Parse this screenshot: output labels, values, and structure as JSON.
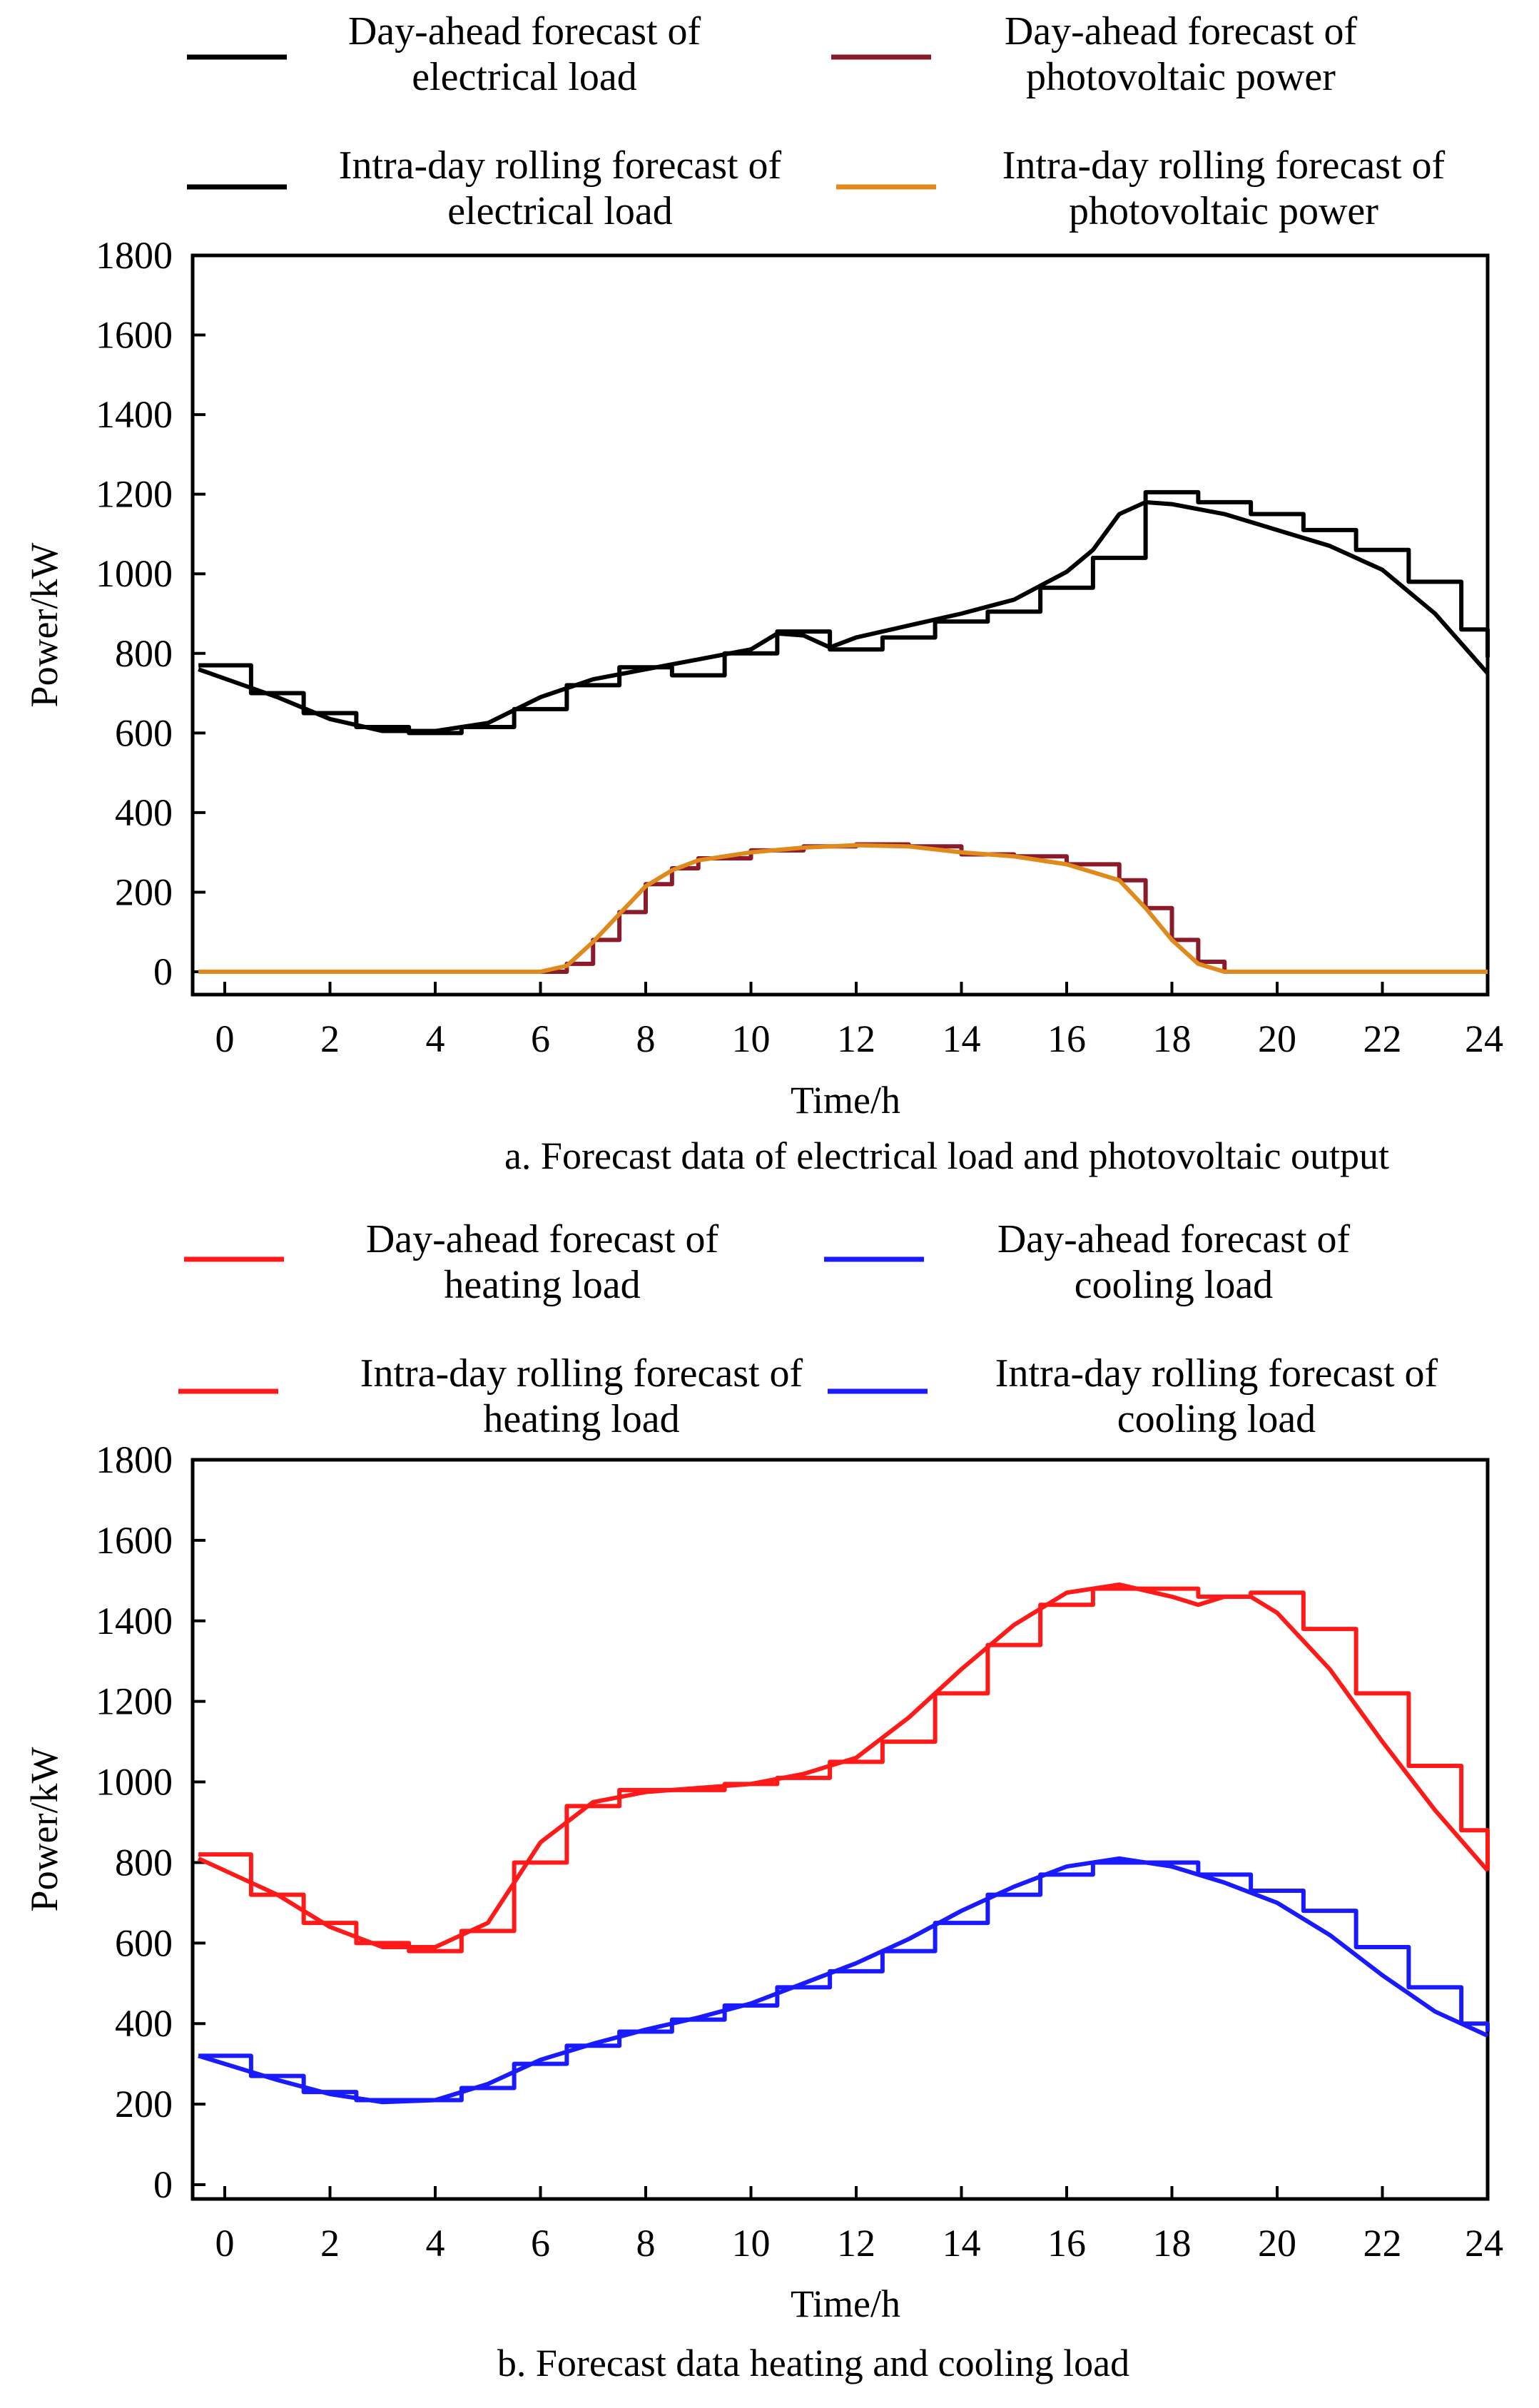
{
  "figure": {
    "panels": [
      "a",
      "b"
    ]
  },
  "chart_data": [
    {
      "type": "line",
      "caption": "a. Forecast data of electrical load and photovoltaic output",
      "xlabel": "Time/h",
      "ylabel": "Power/kW",
      "xlim": [
        -0.5,
        24
      ],
      "ylim": [
        0,
        1800
      ],
      "xticks": [
        0,
        2,
        4,
        6,
        8,
        10,
        12,
        14,
        16,
        18,
        20,
        22,
        24
      ],
      "yticks": [
        0,
        200,
        400,
        600,
        800,
        1000,
        1200,
        1400,
        1600,
        1800
      ],
      "legend": [
        {
          "line1": "Day-ahead forecast of",
          "line2": "electrical load",
          "color": "#000000"
        },
        {
          "line1": "Day-ahead forecast of",
          "line2": "photovoltaic power",
          "color": "#8b1a2b"
        },
        {
          "line1": "Intra-day rolling forecast of",
          "line2": "electrical load",
          "color": "#000000"
        },
        {
          "line1": "Intra-day rolling forecast of",
          "line2": "photovoltaic power",
          "color": "#e08a1e"
        }
      ],
      "series": [
        {
          "name": "Day-ahead forecast of electrical load",
          "style": "step",
          "color": "#000000",
          "x": [
            -0.5,
            0.5,
            1.5,
            2.5,
            3.5,
            4.5,
            5.5,
            6.5,
            7.5,
            8.5,
            9.5,
            10.5,
            11.5,
            12.5,
            13.5,
            14.5,
            15.5,
            16.5,
            17.5,
            18.5,
            19.5,
            20.5,
            21.5,
            22.5,
            23.5,
            24
          ],
          "y": [
            770,
            700,
            650,
            615,
            600,
            615,
            660,
            720,
            765,
            745,
            800,
            855,
            810,
            840,
            880,
            905,
            965,
            1040,
            1205,
            1180,
            1150,
            1110,
            1060,
            980,
            860,
            790
          ]
        },
        {
          "name": "Intra-day rolling forecast of electrical load",
          "style": "line",
          "color": "#000000",
          "x": [
            -0.5,
            1,
            2,
            3,
            4,
            5,
            6,
            7,
            8,
            9,
            10,
            10.5,
            11,
            11.5,
            12,
            13,
            14,
            15,
            16,
            16.5,
            17,
            17.5,
            18,
            19,
            20,
            21,
            22,
            23,
            24
          ],
          "y": [
            760,
            690,
            635,
            605,
            605,
            625,
            690,
            735,
            760,
            785,
            810,
            850,
            845,
            815,
            840,
            870,
            900,
            935,
            1005,
            1060,
            1150,
            1180,
            1175,
            1150,
            1110,
            1070,
            1010,
            900,
            750
          ]
        },
        {
          "name": "Day-ahead forecast of photovoltaic power",
          "style": "step",
          "color": "#8b1a2b",
          "x": [
            -0.5,
            6,
            6.5,
            7,
            7.5,
            8,
            8.5,
            9,
            10,
            11,
            12,
            13,
            14,
            15,
            16,
            17,
            17.5,
            18,
            18.5,
            19,
            24
          ],
          "y": [
            0,
            0,
            20,
            80,
            150,
            220,
            260,
            285,
            305,
            315,
            320,
            315,
            295,
            290,
            270,
            230,
            160,
            80,
            25,
            0,
            0
          ]
        },
        {
          "name": "Intra-day rolling forecast of photovoltaic power",
          "style": "line",
          "color": "#e08a1e",
          "x": [
            -0.5,
            6,
            6.5,
            7,
            7.5,
            8,
            8.5,
            9,
            10,
            11,
            12,
            13,
            14,
            15,
            16,
            17,
            17.5,
            18,
            18.5,
            19,
            24
          ],
          "y": [
            0,
            0,
            15,
            75,
            145,
            215,
            255,
            280,
            300,
            312,
            318,
            315,
            300,
            290,
            270,
            230,
            160,
            80,
            20,
            0,
            0
          ]
        }
      ]
    },
    {
      "type": "line",
      "caption": "b. Forecast data heating and cooling load",
      "xlabel": "Time/h",
      "ylabel": "Power/kW",
      "xlim": [
        -0.5,
        24
      ],
      "ylim": [
        0,
        1800
      ],
      "xticks": [
        0,
        2,
        4,
        6,
        8,
        10,
        12,
        14,
        16,
        18,
        20,
        22,
        24
      ],
      "yticks": [
        0,
        200,
        400,
        600,
        800,
        1000,
        1200,
        1400,
        1600,
        1800
      ],
      "legend": [
        {
          "line1": "Day-ahead forecast of",
          "line2": "heating load",
          "color": "#ff1a1a"
        },
        {
          "line1": "Day-ahead forecast of",
          "line2": "cooling load",
          "color": "#1a1aff"
        },
        {
          "line1": "Intra-day rolling forecast of",
          "line2": "heating load",
          "color": "#ff1a1a"
        },
        {
          "line1": "Intra-day rolling forecast of",
          "line2": "cooling load",
          "color": "#1a1aff"
        }
      ],
      "series": [
        {
          "name": "Day-ahead forecast of heating load",
          "style": "step",
          "color": "#ff1a1a",
          "x": [
            -0.5,
            0.5,
            1.5,
            2.5,
            3.5,
            4.5,
            5.5,
            6.5,
            7.5,
            8.5,
            9.5,
            10.5,
            11.5,
            12.5,
            13.5,
            14.5,
            15.5,
            16.5,
            17.5,
            18.5,
            19.5,
            20.5,
            21.5,
            22.5,
            23.5,
            24
          ],
          "y": [
            820,
            720,
            650,
            600,
            580,
            630,
            800,
            940,
            980,
            980,
            995,
            1010,
            1050,
            1100,
            1220,
            1340,
            1440,
            1480,
            1480,
            1460,
            1470,
            1380,
            1220,
            1040,
            880,
            780
          ]
        },
        {
          "name": "Intra-day rolling forecast of heating load",
          "style": "line",
          "color": "#ff1a1a",
          "x": [
            -0.5,
            1,
            2,
            3,
            4,
            5,
            6,
            7,
            8,
            9,
            10,
            11,
            12,
            13,
            14,
            15,
            16,
            17,
            18,
            18.5,
            19,
            19.5,
            20,
            21,
            22,
            23,
            24
          ],
          "y": [
            810,
            720,
            640,
            590,
            590,
            650,
            850,
            950,
            975,
            985,
            995,
            1020,
            1060,
            1160,
            1280,
            1390,
            1470,
            1490,
            1460,
            1440,
            1460,
            1460,
            1420,
            1280,
            1100,
            930,
            780
          ]
        },
        {
          "name": "Day-ahead forecast of cooling load",
          "style": "step",
          "color": "#1a1aff",
          "x": [
            -0.5,
            0.5,
            1.5,
            2.5,
            3.5,
            4.5,
            5.5,
            6.5,
            7.5,
            8.5,
            9.5,
            10.5,
            11.5,
            12.5,
            13.5,
            14.5,
            15.5,
            16.5,
            17.5,
            18.5,
            19.5,
            20.5,
            21.5,
            22.5,
            23.5,
            24
          ],
          "y": [
            320,
            270,
            230,
            210,
            210,
            240,
            300,
            345,
            380,
            410,
            445,
            490,
            530,
            580,
            650,
            720,
            770,
            800,
            800,
            770,
            730,
            680,
            590,
            490,
            400,
            380
          ]
        },
        {
          "name": "Intra-day rolling forecast of cooling load",
          "style": "line",
          "color": "#1a1aff",
          "x": [
            -0.5,
            1,
            2,
            3,
            4,
            5,
            6,
            7,
            8,
            9,
            10,
            11,
            12,
            13,
            14,
            15,
            16,
            17,
            18,
            19,
            20,
            21,
            22,
            23,
            24
          ],
          "y": [
            320,
            260,
            225,
            205,
            210,
            250,
            310,
            350,
            385,
            415,
            450,
            500,
            550,
            610,
            680,
            740,
            790,
            810,
            790,
            750,
            700,
            620,
            520,
            430,
            370
          ]
        }
      ]
    }
  ]
}
